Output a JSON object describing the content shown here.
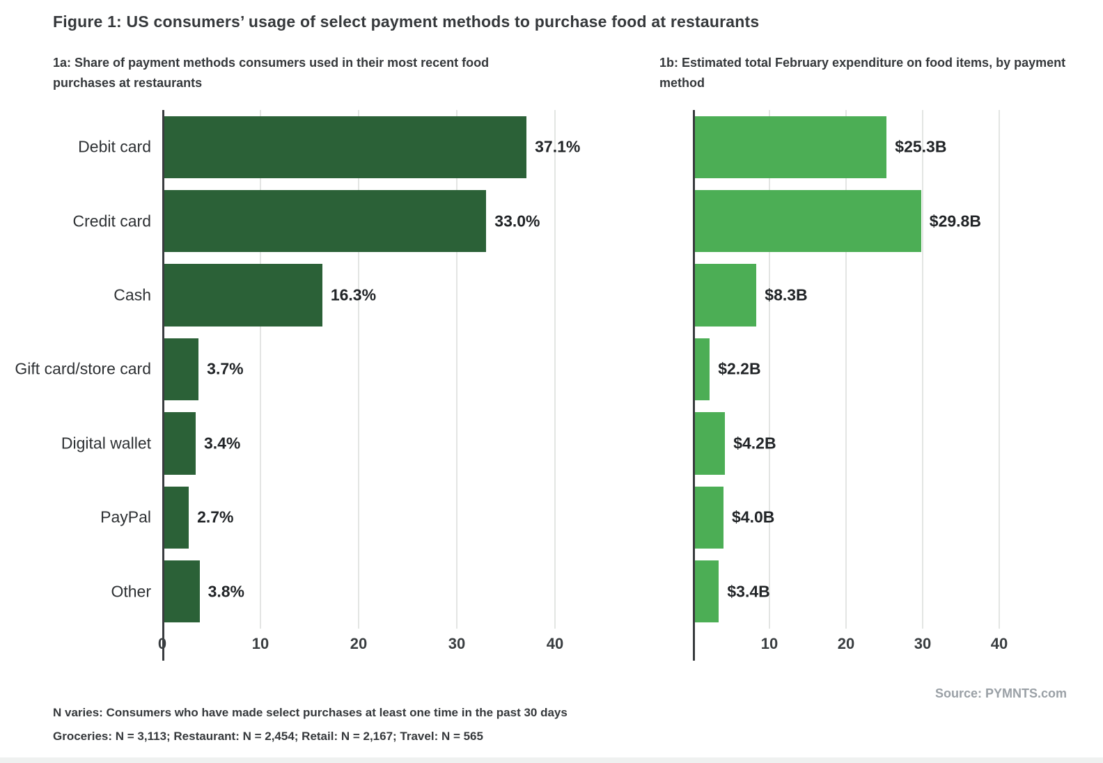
{
  "page": {
    "title": "Figure 1: US consumers’ usage of select payment methods to purchase food at restaurants",
    "source": "Source: PYMNTS.com",
    "footnote_line1": "N varies: Consumers who have made select purchases at least one time in the past 30 days",
    "footnote_line2": "Groceries: N = 3,113; Restaurant: N = 2,454; Retail: N = 2,167; Travel: N = 565"
  },
  "colors": {
    "bar_dark_green": "#2b6137",
    "bar_light_green": "#4cae55",
    "gridline": "#e3e5e3",
    "axis": "#393c3f",
    "text_dark": "#35383b",
    "source_gray": "#9aa0a6"
  },
  "chart_data": [
    {
      "id": "1a",
      "type": "bar",
      "orientation": "horizontal",
      "title": "1a: Share of payment methods consumers used in their most recent food\npurchases at restaurants",
      "categories": [
        "Debit card",
        "Credit card",
        "Cash",
        "Gift card/store card",
        "Digital wallet",
        "PayPal",
        "Other"
      ],
      "values": [
        37.1,
        33.0,
        16.3,
        3.7,
        3.4,
        2.7,
        3.8
      ],
      "value_labels": [
        "37.1%",
        "33.0%",
        "16.3%",
        "3.7%",
        "3.4%",
        "2.7%",
        "3.8%"
      ],
      "xlim": [
        0,
        40
      ],
      "xticks": [
        0,
        10,
        20,
        30,
        40
      ],
      "show_category_labels": true,
      "bar_color": "#2b6137",
      "grid": true,
      "legend": "none"
    },
    {
      "id": "1b",
      "type": "bar",
      "orientation": "horizontal",
      "title": "1b: Estimated total February expenditure on food items, by payment\nmethod",
      "categories": [
        "Debit card",
        "Credit card",
        "Cash",
        "Gift card/store card",
        "Digital wallet",
        "PayPal",
        "Other"
      ],
      "values": [
        25.3,
        29.8,
        8.3,
        2.2,
        4.2,
        4.0,
        3.4
      ],
      "value_labels": [
        "$25.3B",
        "$29.8B",
        "$8.3B",
        "$2.2B",
        "$4.2B",
        "$4.0B",
        "$3.4B"
      ],
      "xlim": [
        0,
        40
      ],
      "xticks": [
        10,
        20,
        30,
        40
      ],
      "show_category_labels": false,
      "bar_color": "#4cae55",
      "grid": true,
      "legend": "none"
    }
  ]
}
